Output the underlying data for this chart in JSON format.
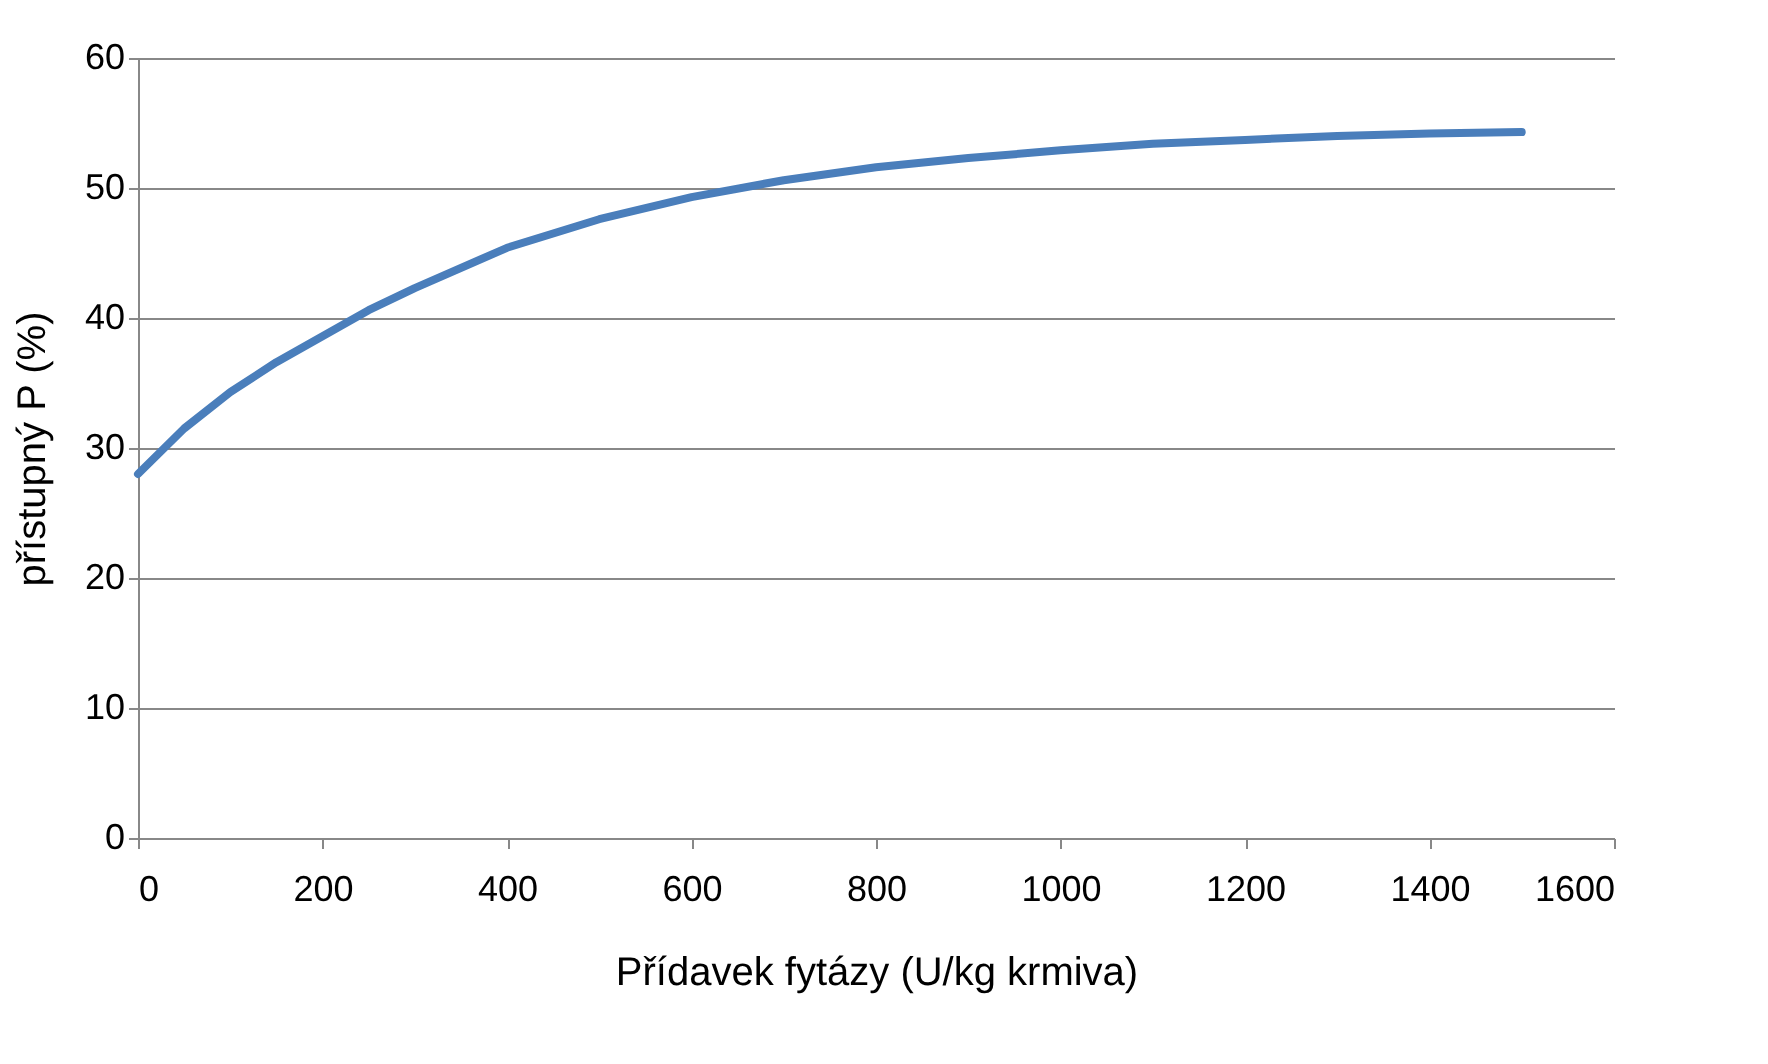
{
  "chart_data": {
    "type": "line",
    "xlabel": "Přídavek fytázy (U/kg krmiva)",
    "ylabel": "přístupný P (%)",
    "x": [
      0,
      50,
      100,
      150,
      200,
      250,
      300,
      400,
      500,
      600,
      700,
      800,
      900,
      1000,
      1100,
      1200,
      1300,
      1400,
      1500
    ],
    "series": [
      {
        "color": "#4a7ebb",
        "values": [
          28.0,
          31.5,
          34.3,
          36.6,
          38.6,
          40.6,
          42.3,
          45.4,
          47.6,
          49.3,
          50.6,
          51.6,
          52.3,
          52.9,
          53.4,
          53.7,
          54.0,
          54.2,
          54.3
        ]
      }
    ],
    "xlim": [
      0,
      1600
    ],
    "xticks": [
      0,
      200,
      400,
      600,
      800,
      1000,
      1200,
      1400,
      1600
    ],
    "ylim": [
      0,
      60
    ],
    "yticks": [
      0,
      10,
      20,
      30,
      40,
      50,
      60
    ],
    "grid": "y",
    "marker": "none",
    "line_style": "solid"
  }
}
